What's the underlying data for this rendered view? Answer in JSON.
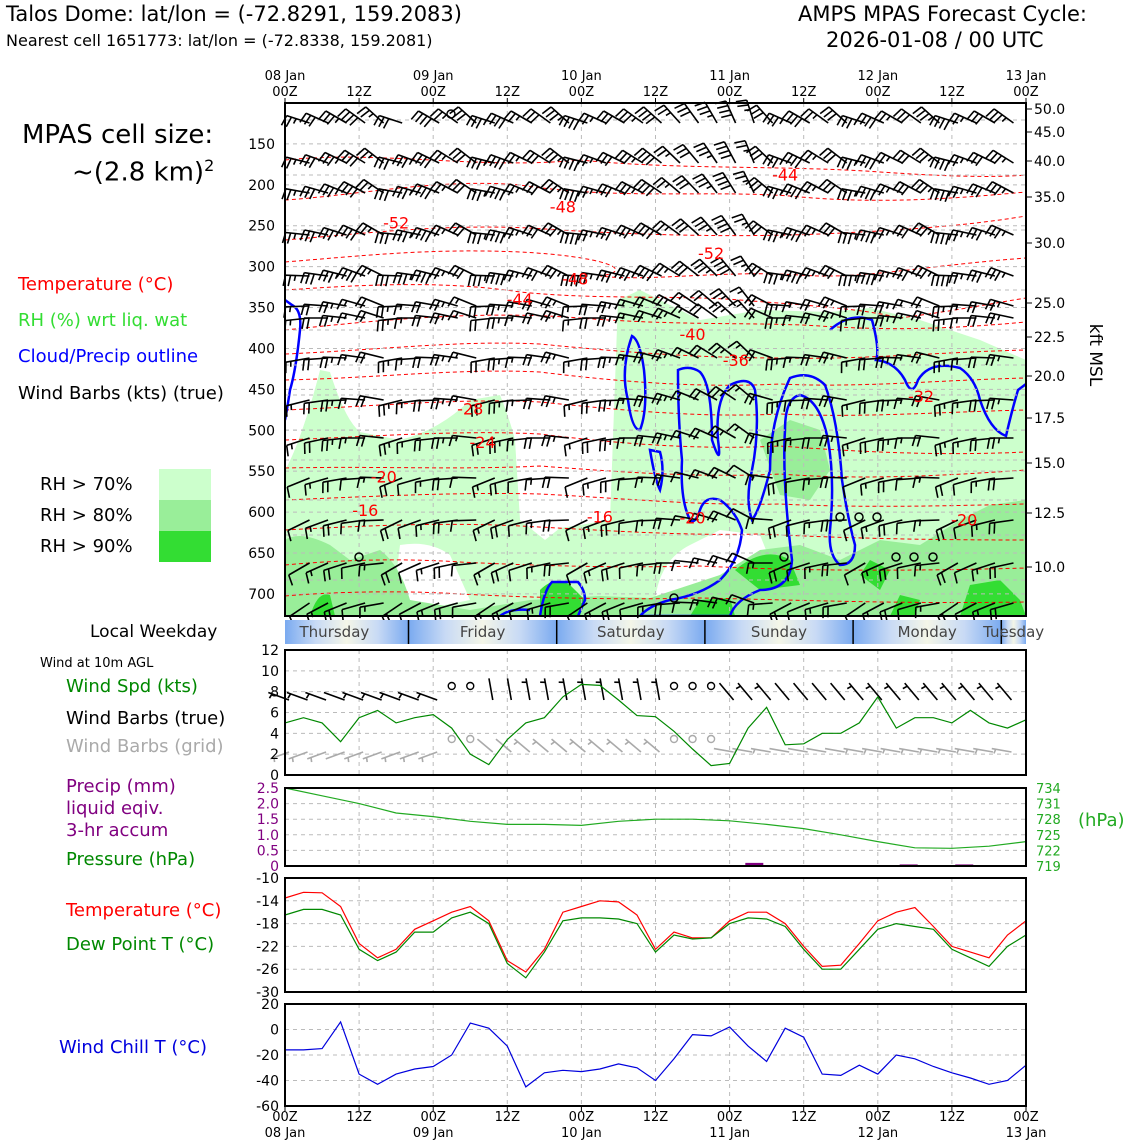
{
  "header": {
    "station": "Talos Dome: lat/lon = (-72.8291, 159.2083)",
    "nearest": "Nearest cell 1651773: lat/lon = (-72.8338, 159.2081)",
    "cycle_line1": "AMPS MPAS Forecast Cycle:",
    "cycle_line2": "2026-01-08 / 00 UTC",
    "cell_size_label": "MPAS cell size:",
    "cell_size_value": "~(2.8 km)",
    "cell_size_exp": "2"
  },
  "legend": {
    "temperature": "Temperature (°C)",
    "rh": "RH (%) wrt liq. wat",
    "cloud": "Cloud/Precip outline",
    "wind": "Wind Barbs (kts) (true)",
    "rh70": "RH > 70%",
    "rh80": "RH > 80%",
    "rh90": "RH > 90%",
    "local_weekday": "Local Weekday",
    "wind10m": "Wind at 10m AGL",
    "wind_spd": "Wind Spd (kts)",
    "wind_barbs_true": "Wind Barbs (true)",
    "wind_barbs_grid": "Wind Barbs (grid)",
    "precip1": "Precip (mm)",
    "precip2": "liquid eqiv.",
    "precip3": "3-hr accum",
    "pressure": "Pressure (hPa)",
    "temperature2": "Temperature (°C)",
    "dewpoint": "Dew Point T (°C)",
    "windchill": "Wind Chill T (°C)"
  },
  "colors": {
    "temperature": "#ff0000",
    "rh": "#33dd33",
    "cloud": "#0000ff",
    "rh70": "#ccffcc",
    "rh80": "#99ee99",
    "rh90": "#33dd33",
    "wind_spd": "#008800",
    "pressure": "#22aa22",
    "precip": "#800080",
    "dewpoint": "#008800",
    "windchill": "#0000dd",
    "barb_grid": "#aaaaaa"
  },
  "time_axis": {
    "top_labels": [
      {
        "date": "08 Jan",
        "hour": "00Z"
      },
      {
        "date": "",
        "hour": "12Z"
      },
      {
        "date": "09 Jan",
        "hour": "00Z"
      },
      {
        "date": "",
        "hour": "12Z"
      },
      {
        "date": "10 Jan",
        "hour": "00Z"
      },
      {
        "date": "",
        "hour": "12Z"
      },
      {
        "date": "11 Jan",
        "hour": "00Z"
      },
      {
        "date": "",
        "hour": "12Z"
      },
      {
        "date": "12 Jan",
        "hour": "00Z"
      },
      {
        "date": "",
        "hour": "12Z"
      },
      {
        "date": "13 Jan",
        "hour": "00Z"
      }
    ],
    "bottom_labels": [
      {
        "hour": "00Z",
        "date": "08 Jan"
      },
      {
        "hour": "12Z",
        "date": ""
      },
      {
        "hour": "00Z",
        "date": "09 Jan"
      },
      {
        "hour": "12Z",
        "date": ""
      },
      {
        "hour": "00Z",
        "date": "10 Jan"
      },
      {
        "hour": "12Z",
        "date": ""
      },
      {
        "hour": "00Z",
        "date": "11 Jan"
      },
      {
        "hour": "12Z",
        "date": ""
      },
      {
        "hour": "00Z",
        "date": "12 Jan"
      },
      {
        "hour": "12Z",
        "date": ""
      },
      {
        "hour": "00Z",
        "date": "13 Jan"
      }
    ],
    "weekdays": [
      "Thursday",
      "Friday",
      "Saturday",
      "Sunday",
      "Monday",
      "Tuesday"
    ]
  },
  "chart_data": [
    {
      "type": "heatmap",
      "name": "time-height cross section",
      "x_range_hours": [
        0,
        120
      ],
      "y_axis_left": {
        "labels": [
          "150",
          "200",
          "250",
          "300",
          "350",
          "400",
          "450",
          "500",
          "550",
          "600",
          "650",
          "700"
        ]
      },
      "y_axis_right": {
        "unit": "kft MSL",
        "labels": [
          "50.0",
          "45.0",
          "40.0",
          "35.0",
          "30.0",
          "25.0",
          "22.5",
          "20.0",
          "17.5",
          "15.0",
          "12.5",
          "10.0"
        ]
      },
      "temperature_contour_labels": [
        {
          "t": 81,
          "p": 191,
          "text": "-44"
        },
        {
          "t": 45,
          "p": 230,
          "text": "-48"
        },
        {
          "t": 18,
          "p": 250,
          "text": "-52"
        },
        {
          "t": 69,
          "p": 287,
          "text": "-52"
        },
        {
          "t": 47,
          "p": 318,
          "text": "-48"
        },
        {
          "t": 38,
          "p": 343,
          "text": "-44"
        },
        {
          "t": 66,
          "p": 386,
          "text": "-40"
        },
        {
          "t": 73,
          "p": 418,
          "text": "-36"
        },
        {
          "t": 103,
          "p": 462,
          "text": "-32"
        },
        {
          "t": 30,
          "p": 477,
          "text": "-28"
        },
        {
          "t": 32,
          "p": 518,
          "text": "-24"
        },
        {
          "t": 16,
          "p": 560,
          "text": "-20"
        },
        {
          "t": 13,
          "p": 601,
          "text": "-16"
        },
        {
          "t": 51,
          "p": 609,
          "text": "-16"
        },
        {
          "t": 66,
          "p": 610,
          "text": "-20"
        },
        {
          "t": 110,
          "p": 613,
          "text": "-20"
        }
      ]
    },
    {
      "type": "line",
      "name": "wind speed 10m",
      "x_hours": [
        0,
        3,
        6,
        9,
        12,
        15,
        18,
        21,
        24,
        27,
        30,
        33,
        36,
        39,
        42,
        45,
        48,
        51,
        54,
        57,
        60,
        63,
        66,
        69,
        72,
        75,
        78,
        81,
        84,
        87,
        90,
        93,
        96,
        99,
        102,
        105,
        108,
        111,
        114,
        117,
        120
      ],
      "series": [
        {
          "name": "Wind Spd (kts)",
          "values": [
            5,
            5.5,
            5,
            3.2,
            5.5,
            6.2,
            5,
            5.5,
            5.8,
            4.5,
            2,
            1,
            3.4,
            5,
            5.5,
            7.5,
            8.7,
            8.6,
            7.2,
            5.7,
            5.6,
            4.2,
            2.5,
            0.9,
            1.1,
            4.5,
            6.5,
            2.9,
            3,
            4,
            4,
            5,
            7.5,
            4.5,
            5.5,
            5.5,
            5,
            6.2,
            5,
            4.5,
            5.3
          ]
        }
      ],
      "ylim": [
        0,
        12
      ],
      "yticks": [
        "0",
        "2",
        "4",
        "6",
        "8",
        "10",
        "12"
      ]
    },
    {
      "type": "line",
      "name": "pressure and precip",
      "x_hours": [
        0,
        6,
        12,
        18,
        24,
        30,
        36,
        42,
        48,
        54,
        60,
        66,
        72,
        78,
        84,
        90,
        96,
        102,
        108,
        114,
        120
      ],
      "series": [
        {
          "name": "Pressure (hPa)",
          "values": [
            734,
            732.5,
            731,
            729.2,
            728.5,
            727.6,
            727,
            727,
            726.8,
            727.6,
            728,
            728,
            727.7,
            727,
            726.2,
            725,
            723.7,
            722.5,
            722.4,
            722.8,
            723.7
          ]
        }
      ],
      "precip_bars": [
        {
          "t": 76,
          "mm": 0.1
        },
        {
          "t": 101,
          "mm": 0.05
        },
        {
          "t": 110,
          "mm": 0.05
        }
      ],
      "ylim_left": [
        0,
        2.5
      ],
      "yticks_left": [
        "0",
        "0.5",
        "1.0",
        "1.5",
        "2.0",
        "2.5"
      ],
      "ylim_right": [
        719,
        734
      ],
      "yticks_right": [
        "719",
        "722",
        "725",
        "728",
        "731",
        "734"
      ],
      "right_label": "(hPa)"
    },
    {
      "type": "line",
      "name": "temperature and dew point",
      "x_hours": [
        0,
        3,
        6,
        9,
        12,
        15,
        18,
        21,
        24,
        27,
        30,
        33,
        36,
        39,
        42,
        45,
        48,
        51,
        54,
        57,
        60,
        63,
        66,
        69,
        72,
        75,
        78,
        81,
        84,
        87,
        90,
        93,
        96,
        99,
        102,
        105,
        108,
        111,
        114,
        117,
        120
      ],
      "series": [
        {
          "name": "Temperature (°C)",
          "values": [
            -13.5,
            -12.5,
            -12.6,
            -15,
            -21.5,
            -24,
            -22.5,
            -19,
            -17.5,
            -16,
            -15,
            -17.5,
            -24.5,
            -26.5,
            -22.5,
            -16,
            -15,
            -14,
            -14.2,
            -16.5,
            -22.5,
            -19.5,
            -20.5,
            -20.5,
            -17.5,
            -16,
            -16,
            -18,
            -22,
            -25.5,
            -25.3,
            -21.5,
            -17.5,
            -16,
            -15.2,
            -18.5,
            -22,
            -23,
            -24,
            -20,
            -17.5
          ]
        },
        {
          "name": "Dew Point T (°C)",
          "values": [
            -16.5,
            -15.5,
            -15.5,
            -16.5,
            -22.5,
            -24.5,
            -23,
            -19.5,
            -19.5,
            -17,
            -16,
            -18,
            -25,
            -27.5,
            -23,
            -17.5,
            -17,
            -17,
            -17.2,
            -18,
            -23,
            -20,
            -20.7,
            -20.5,
            -18,
            -17,
            -17.2,
            -18.5,
            -22.5,
            -26,
            -26,
            -22.5,
            -19,
            -18,
            -18.5,
            -19,
            -22.5,
            -24,
            -25.5,
            -22,
            -20
          ]
        }
      ],
      "ylim": [
        -30,
        -10
      ],
      "yticks": [
        "-10",
        "-14",
        "-18",
        "-22",
        "-26",
        "-30"
      ]
    },
    {
      "type": "line",
      "name": "wind chill",
      "x_hours": [
        0,
        3,
        6,
        9,
        12,
        15,
        18,
        21,
        24,
        27,
        30,
        33,
        36,
        39,
        42,
        45,
        48,
        51,
        54,
        57,
        60,
        63,
        66,
        69,
        72,
        75,
        78,
        81,
        84,
        87,
        90,
        93,
        96,
        99,
        102,
        105,
        108,
        111,
        114,
        117,
        120
      ],
      "series": [
        {
          "name": "Wind Chill T (°C)",
          "values": [
            -16,
            -16,
            -15,
            6,
            -35,
            -43,
            -35,
            -31,
            -29,
            -20,
            5,
            1,
            -13,
            -45,
            -34,
            -32,
            -33,
            -31,
            -27,
            -30,
            -40,
            -23,
            -4,
            -5,
            2,
            -13,
            -25,
            1,
            -6,
            -35,
            -36,
            -28,
            -35,
            -20,
            -23,
            -29,
            -34,
            -38,
            -43,
            -40,
            -28
          ]
        }
      ],
      "ylim": [
        -60,
        20
      ],
      "yticks": [
        "20",
        "0",
        "-20",
        "-40",
        "-60"
      ]
    }
  ]
}
